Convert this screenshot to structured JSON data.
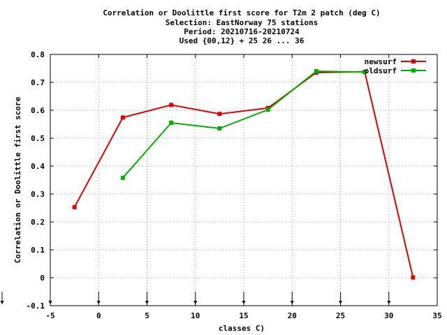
{
  "chart_data": {
    "type": "line",
    "title_lines": [
      "Correlation or Doolittle first score  for T2m 2 patch (deg C)",
      "Selection: EastNorway     75 stations",
      "Period: 20210716-20210724",
      "Used {00,12} + 25 26 ... 36"
    ],
    "xlabel": "classes C)",
    "ylabel": "Correlation or Doolittle first score",
    "xlim": [
      -5,
      35
    ],
    "ylim": [
      -0.1,
      0.8
    ],
    "xticks": [
      -5,
      0,
      5,
      10,
      15,
      20,
      25,
      30,
      35
    ],
    "yticks": [
      -0.1,
      0,
      0.1,
      0.2,
      0.3,
      0.4,
      0.5,
      0.6,
      0.7,
      0.8
    ],
    "xtick_labels": [
      "-5",
      "0",
      "5",
      "10",
      "15",
      "20",
      "25",
      "30",
      "35"
    ],
    "ytick_labels": [
      "-0.1",
      "0",
      "0.1",
      "0.2",
      "0.3",
      "0.4",
      "0.5",
      "0.6",
      "0.7",
      "0.8"
    ],
    "grid": true,
    "legend_position": "top-right",
    "arrow_marker_x": [
      -5,
      0,
      5,
      10,
      15,
      20,
      25,
      30
    ],
    "series": [
      {
        "name": "newsurf",
        "color": "#e00000",
        "x": [
          -2.5,
          2.5,
          7.5,
          12.5,
          17.5,
          22.5,
          27.5,
          32.5
        ],
        "y": [
          0.253,
          0.574,
          0.619,
          0.587,
          0.608,
          0.735,
          0.738,
          0.001
        ]
      },
      {
        "name": "oldsurf",
        "color": "#00b000",
        "x": [
          2.5,
          7.5,
          12.5,
          17.5,
          22.5,
          27.5
        ],
        "y": [
          0.358,
          0.555,
          0.535,
          0.602,
          0.74,
          0.737
        ]
      }
    ]
  }
}
